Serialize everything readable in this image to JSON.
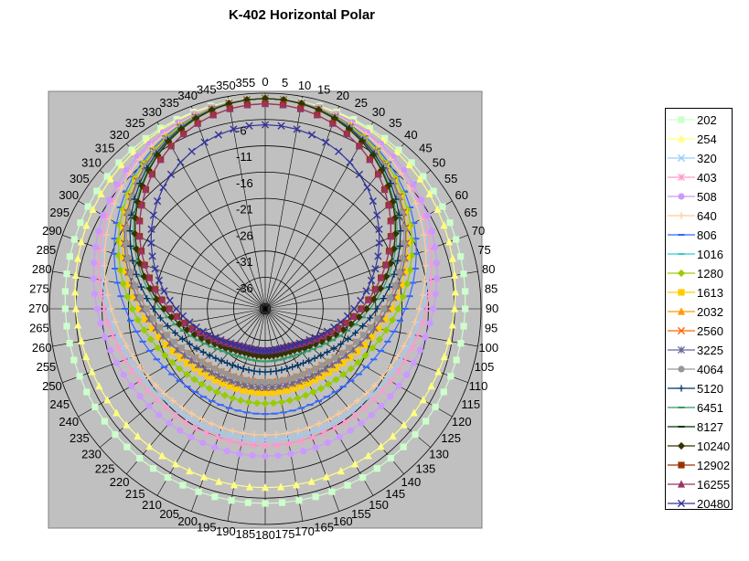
{
  "chart_data": {
    "type": "polar-line",
    "title": "K-402 Horizontal Polar",
    "angle_labels": [
      "0",
      "5",
      "10",
      "15",
      "20",
      "25",
      "30",
      "35",
      "40",
      "45",
      "50",
      "55",
      "60",
      "65",
      "70",
      "75",
      "80",
      "85",
      "90",
      "95",
      "100",
      "105",
      "110",
      "115",
      "120",
      "125",
      "130",
      "135",
      "140",
      "145",
      "150",
      "155",
      "160",
      "165",
      "170",
      "175",
      "180",
      "185",
      "190",
      "195",
      "200",
      "205",
      "210",
      "215",
      "220",
      "225",
      "230",
      "235",
      "240",
      "245",
      "250",
      "255",
      "260",
      "265",
      "270",
      "275",
      "280",
      "285",
      "290",
      "295",
      "300",
      "305",
      "310",
      "315",
      "320",
      "325",
      "330",
      "335",
      "340",
      "345",
      "350",
      "355"
    ],
    "radial_ticks": [
      -6,
      -11,
      -16,
      -21,
      -26,
      -31,
      -36
    ],
    "rlim": [
      -40,
      1
    ],
    "legend_position": "right",
    "series": [
      {
        "name": "202",
        "color": "#ccffcc",
        "marker": "square",
        "front": 0,
        "rear": -3
      },
      {
        "name": "254",
        "color": "#ffff80",
        "marker": "triangle",
        "front": 0,
        "rear": -6
      },
      {
        "name": "320",
        "color": "#99ccff",
        "marker": "x",
        "front": 0,
        "rear": -15
      },
      {
        "name": "403",
        "color": "#ff99cc",
        "marker": "star",
        "front": 0,
        "rear": -14
      },
      {
        "name": "508",
        "color": "#cc99ff",
        "marker": "circle",
        "front": 0,
        "rear": -12
      },
      {
        "name": "640",
        "color": "#ffcc99",
        "marker": "plus",
        "front": 0,
        "rear": -16
      },
      {
        "name": "806",
        "color": "#3366ff",
        "marker": "dash",
        "front": 0,
        "rear": -20
      },
      {
        "name": "1016",
        "color": "#33cccc",
        "marker": "dash",
        "front": 0,
        "rear": -22
      },
      {
        "name": "1280",
        "color": "#99cc00",
        "marker": "diamond",
        "front": 0,
        "rear": -22
      },
      {
        "name": "1613",
        "color": "#ffcc00",
        "marker": "square",
        "front": 0,
        "rear": -24
      },
      {
        "name": "2032",
        "color": "#ff9900",
        "marker": "triangle",
        "front": 0,
        "rear": -25
      },
      {
        "name": "2560",
        "color": "#ff6600",
        "marker": "x",
        "front": 0,
        "rear": -26
      },
      {
        "name": "3225",
        "color": "#666699",
        "marker": "star",
        "front": 0,
        "rear": -25
      },
      {
        "name": "4064",
        "color": "#969696",
        "marker": "circle",
        "front": 0,
        "rear": -26
      },
      {
        "name": "5120",
        "color": "#003366",
        "marker": "plus",
        "front": 0,
        "rear": -28
      },
      {
        "name": "6451",
        "color": "#339966",
        "marker": "dash",
        "front": 0,
        "rear": -30
      },
      {
        "name": "8127",
        "color": "#003300",
        "marker": "dash",
        "front": 0,
        "rear": -31
      },
      {
        "name": "10240",
        "color": "#333300",
        "marker": "diamond",
        "front": 0,
        "rear": -31
      },
      {
        "name": "12902",
        "color": "#993300",
        "marker": "square",
        "front": -1,
        "rear": -32
      },
      {
        "name": "16255",
        "color": "#993366",
        "marker": "triangle",
        "front": -1,
        "rear": -32
      },
      {
        "name": "20480",
        "color": "#333399",
        "marker": "x",
        "front": -5,
        "rear": -32
      }
    ]
  }
}
